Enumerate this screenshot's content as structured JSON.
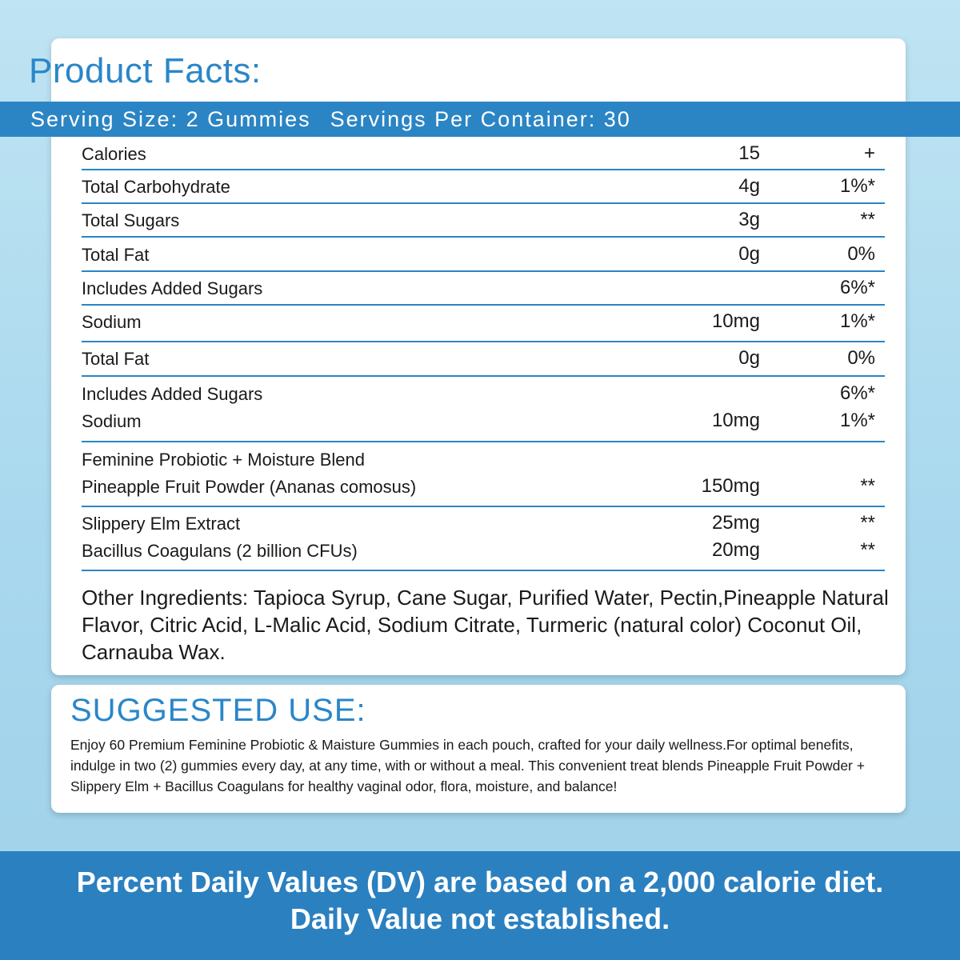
{
  "facts": {
    "title": "Product Facts:",
    "serving_size": "Serving Size: 2 Gummies",
    "servings_per_container": "Servings Per Container: 30",
    "rows": [
      {
        "name": "Calories",
        "amount": "15",
        "dv": "+"
      },
      {
        "name": "Total Carbohydrate",
        "amount": "4g",
        "dv": "1%*"
      },
      {
        "name": "Total Sugars",
        "amount": "3g",
        "dv": "**"
      },
      {
        "name": "Total Fat",
        "amount": "0g",
        "dv": "0%"
      },
      {
        "name": "Includes Added Sugars",
        "amount": "",
        "dv": "6%*"
      },
      {
        "name": "Sodium",
        "amount": "10mg",
        "dv": "1%*"
      },
      {
        "name": "Total Fat",
        "amount": "0g",
        "dv": "0%"
      },
      {
        "name": "Includes Added Sugars",
        "amount": "",
        "dv": "6%*"
      },
      {
        "name": "Sodium",
        "amount": "10mg",
        "dv": "1%*"
      },
      {
        "name": "Feminine Probiotic + Moisture Blend",
        "amount": "",
        "dv": ""
      },
      {
        "name": "Pineapple Fruit Powder (Ananas comosus)",
        "amount": "150mg",
        "dv": "**"
      },
      {
        "name": "Slippery Elm Extract",
        "amount": "25mg",
        "dv": "**"
      },
      {
        "name": "Bacillus Coagulans (2 billion CFUs)",
        "amount": "20mg",
        "dv": "**"
      }
    ],
    "other_ingredients": "Other Ingredients: Tapioca Syrup, Cane Sugar, Purified Water, Pectin,Pineapple Natural Flavor, Citric Acid, L-Malic Acid,  Sodium Citrate, Turmeric (natural color) Coconut Oil, Carnauba Wax."
  },
  "suggested_use": {
    "title": "SUGGESTED USE:",
    "text": "Enjoy 60 Premium Feminine Probiotic & Maisture Gummies in each pouch, crafted for your daily wellness.For optimal benefits, indulge in two (2) gummies every day, at any time, with or without a meal. This convenient treat blends Pineapple Fruit Powder + Slippery Elm + Bacillus Coagulans for healthy vaginal odor, flora, moisture, and balance!"
  },
  "footer": {
    "line1": "Percent Daily Values (DV) are based on a 2,000 calorie diet.",
    "line2": "Daily Value not established."
  },
  "colors": {
    "accent_blue": "#2b85c4",
    "title_blue": "#2a86c8",
    "background": "#a9d8ee"
  }
}
